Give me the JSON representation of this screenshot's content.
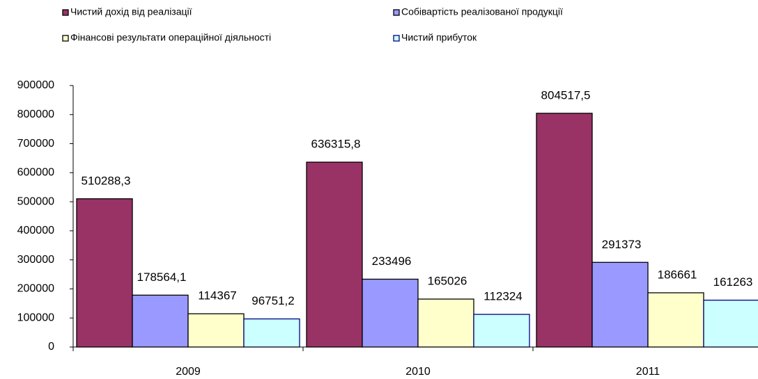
{
  "chart_data": {
    "type": "bar",
    "categories": [
      "2009",
      "2010",
      "2011"
    ],
    "series": [
      {
        "name": "Чистий дохід від реалізації",
        "color": "#993366",
        "values": [
          510288.3,
          636315.8,
          804517.5
        ],
        "value_labels": [
          "510288,3",
          "636315,8",
          "804517,5"
        ]
      },
      {
        "name": "Собівартість  реалізованої продукції",
        "color": "#9999ff",
        "values": [
          178564.1,
          233496,
          291373
        ],
        "value_labels": [
          "178564,1",
          "233496",
          "291373"
        ]
      },
      {
        "name": "Фінансові результати операційної діяльності",
        "color": "#ffffcc",
        "values": [
          114367,
          165026,
          186661
        ],
        "value_labels": [
          "114367",
          "165026",
          "186661"
        ]
      },
      {
        "name": "Чистий прибуток",
        "color": "#ccffff",
        "values": [
          96751.2,
          112324,
          161263
        ],
        "value_labels": [
          "96751,2",
          "112324",
          "161263"
        ]
      }
    ],
    "ylim": [
      0,
      900000
    ],
    "yticks": [
      0,
      100000,
      200000,
      300000,
      400000,
      500000,
      600000,
      700000,
      800000,
      900000
    ]
  }
}
